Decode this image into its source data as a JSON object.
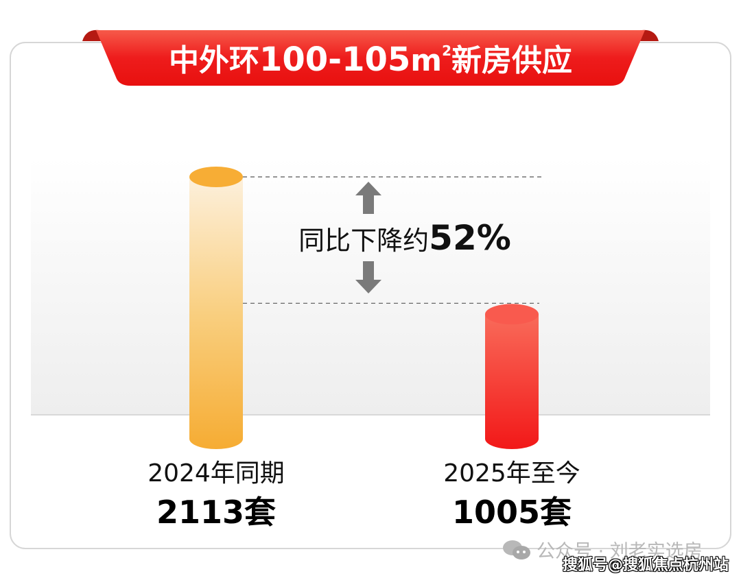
{
  "chart_data": {
    "type": "bar",
    "title": "中外环100-105㎡新房供应",
    "title_parts": {
      "prefix": "中外环",
      "range": "100-105",
      "unit": "m",
      "unit_sup": "2",
      "suffix": "新房供应"
    },
    "categories": [
      "2024年同期",
      "2025年至今"
    ],
    "values": [
      2113,
      1005
    ],
    "value_labels": [
      "2113套",
      "1005套"
    ],
    "value_unit": "套",
    "colors": [
      "#f7ad35",
      "#f42a2a"
    ],
    "annotation": {
      "text": "同比下降约",
      "value": "52%"
    },
    "grid": false,
    "legend": "none"
  },
  "watermark": {
    "account": "公众号 · 刘老实选房",
    "source": "搜狐号@搜狐焦点杭州站",
    "icon": "wechat-icon"
  },
  "theme": {
    "banner": "#ee1c1c",
    "card_border": "#d9d9d9"
  }
}
